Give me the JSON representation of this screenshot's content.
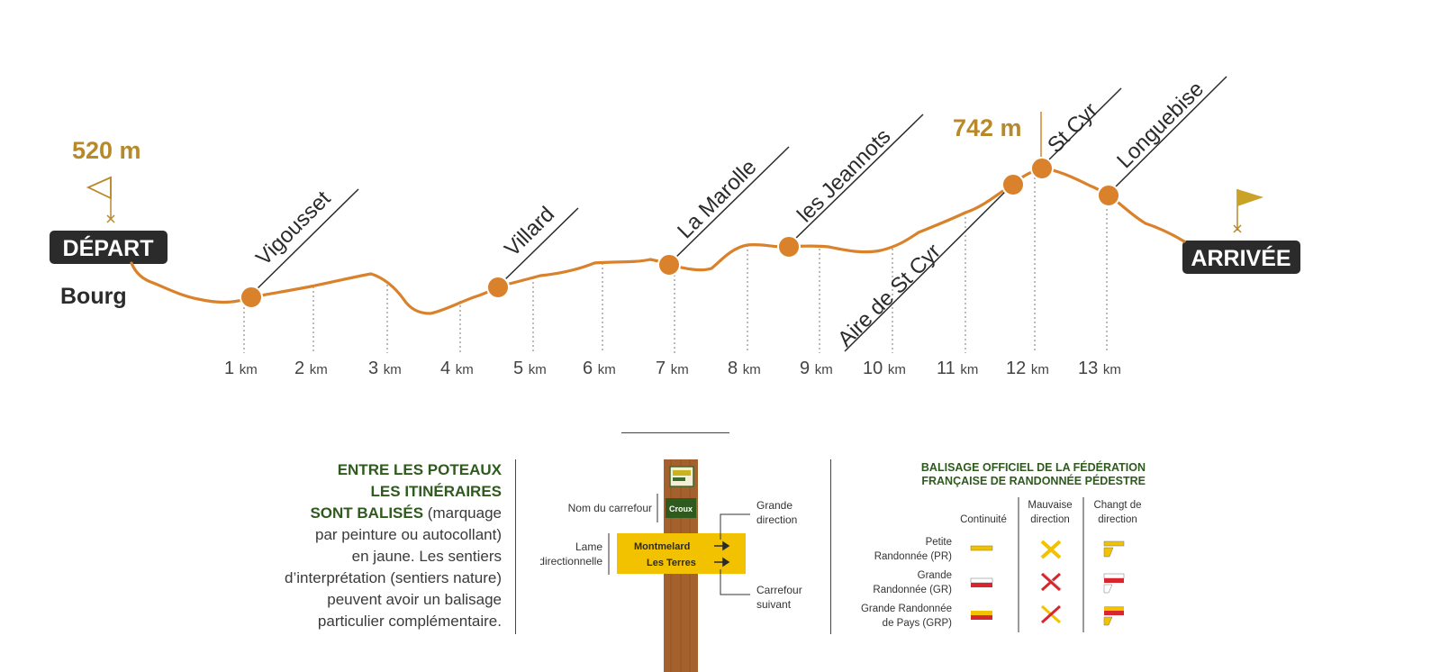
{
  "profile": {
    "start_altitude": "520 m",
    "max_altitude": "742 m",
    "depart_label": "DÉPART",
    "arrivee_label": "ARRIVÉE",
    "start_place": "Bourg",
    "km_unit": "km",
    "km_ticks": [
      "1",
      "2",
      "3",
      "4",
      "5",
      "6",
      "7",
      "8",
      "9",
      "10",
      "11",
      "12",
      "13"
    ],
    "places": [
      "Vigousset",
      "Villard",
      "La Marolle",
      "les Jeannots",
      "Aire de St Cyr",
      "St Cyr",
      "Longuebise"
    ],
    "colors": {
      "route": "#d9822b",
      "altitude": "#b8892a",
      "dark": "#2b2b2b",
      "flag": "#c9a227"
    }
  },
  "legend": {
    "heading1": "ENTRE LES POTEAUX",
    "heading2": "LES ITINÉRAIRES",
    "heading3": "SONT BALISÉS",
    "text_l3": " (marquage",
    "text_l4": "par peinture ou autocollant)",
    "text_l5": "en jaune. Les sentiers",
    "text_l6": "d’interprétation (sentiers nature)",
    "text_l7": "peuvent avoir un balisage",
    "text_l8": "particulier complémentaire."
  },
  "signpost": {
    "nom_carrefour": "Nom du carrefour",
    "croix": "Croux",
    "lame1": "Lame",
    "lame2": "directionnelle",
    "dest1": "Montmelard",
    "dest2": "Les Terres",
    "grande1": "Grande",
    "grande2": "direction",
    "carrefour1": "Carrefour",
    "carrefour2": "suivant"
  },
  "balisage": {
    "title1": "BALISAGE OFFICIEL DE LA FÉDÉRATION",
    "title2": "FRANÇAISE DE RANDONNÉE PÉDESTRE",
    "col_continuite": "Continuité",
    "col_mauvaise1": "Mauvaise",
    "col_mauvaise2": "direction",
    "col_change1": "Changt de",
    "col_change2": "direction",
    "row_pr1": "Petite",
    "row_pr2": "Randonnée (PR)",
    "row_gr1": "Grande",
    "row_gr2": "Randonnée (GR)",
    "row_grp1": "Grande Randonnée",
    "row_grp2": "de Pays (GRP)",
    "colors": {
      "yellow": "#f2c200",
      "red": "#d7262d",
      "white": "#ffffff"
    }
  }
}
